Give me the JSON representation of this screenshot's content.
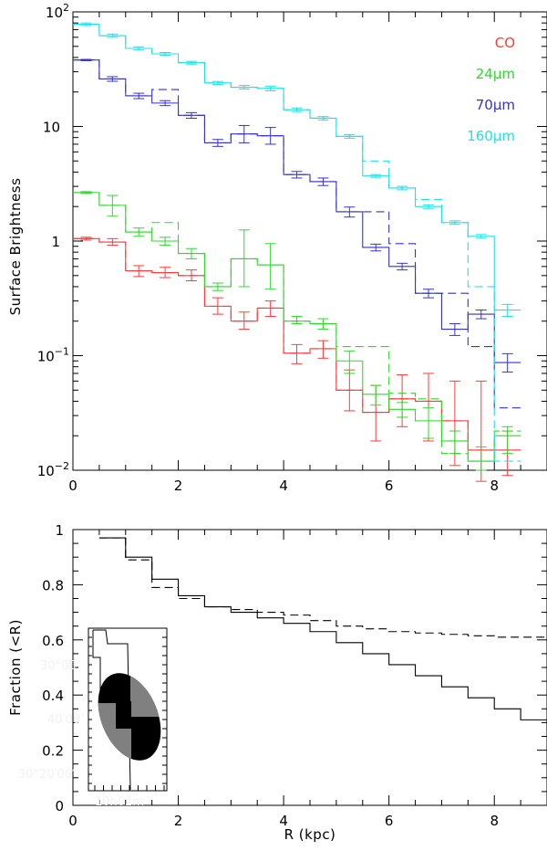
{
  "chart_data": [
    {
      "type": "line",
      "step": true,
      "xlim": [
        0,
        9
      ],
      "ylim": [
        0.01,
        100
      ],
      "yscale": "log",
      "xlabel": "",
      "ylabel": "Surface Brightness",
      "x_ticks": [
        "0",
        "2",
        "4",
        "6",
        "8"
      ],
      "y_ticks": [
        {
          "base": "10",
          "exp": "2"
        },
        {
          "base": "10",
          "exp": ""
        },
        {
          "base": "1",
          "exp": ""
        },
        {
          "base": "10",
          "exp": "−1"
        },
        {
          "base": "10",
          "exp": "−2"
        }
      ],
      "legend_position": "top-right",
      "bin_edges": [
        0,
        0.5,
        1,
        1.5,
        2,
        2.5,
        3,
        3.5,
        4,
        4.5,
        5,
        5.5,
        6,
        6.5,
        7,
        7.5,
        8,
        8.5
      ],
      "series": [
        {
          "name": "CO",
          "color": "#ff3b3b",
          "solid": [
            1.05,
            0.98,
            0.55,
            0.53,
            0.5,
            0.27,
            0.2,
            0.26,
            0.105,
            0.115,
            0.05,
            0.032,
            0.042,
            0.04,
            0.027,
            0.015,
            0.015
          ],
          "dashed": [
            1.05,
            0.98,
            0.55,
            0.53,
            0.5,
            0.27,
            0.2,
            0.26,
            0.105,
            0.115,
            0.05,
            0.032,
            0.042,
            0.04,
            0.027,
            0.015,
            0.015
          ],
          "err_low": [
            1.02,
            0.92,
            0.49,
            0.48,
            0.45,
            0.23,
            0.17,
            0.22,
            0.085,
            0.095,
            0.033,
            0.018,
            0.024,
            0.018,
            0.011,
            0.008,
            0.009
          ],
          "err_high": [
            1.08,
            1.05,
            0.61,
            0.59,
            0.56,
            0.32,
            0.24,
            0.3,
            0.125,
            0.135,
            0.075,
            0.055,
            0.068,
            0.07,
            0.06,
            0.06,
            0.022
          ]
        },
        {
          "name": "24μm",
          "color": "#2fd82f",
          "solid": [
            2.65,
            2.05,
            1.2,
            1.0,
            0.78,
            0.4,
            0.7,
            0.62,
            0.2,
            0.19,
            0.09,
            0.046,
            0.034,
            0.027,
            0.018,
            0.012,
            0.02
          ],
          "dashed": [
            2.65,
            2.05,
            1.2,
            1.45,
            0.78,
            0.4,
            0.7,
            0.62,
            0.2,
            0.19,
            0.12,
            0.12,
            0.047,
            0.042,
            0.014,
            0.012,
            0.022
          ],
          "err_low": [
            2.6,
            1.65,
            1.1,
            0.92,
            0.7,
            0.37,
            0.4,
            0.38,
            0.19,
            0.17,
            0.07,
            0.037,
            0.029,
            0.019,
            0.014,
            0.01,
            0.014
          ],
          "err_high": [
            2.7,
            2.5,
            1.3,
            1.08,
            0.86,
            0.43,
            1.25,
            0.95,
            0.22,
            0.21,
            0.11,
            0.055,
            0.039,
            0.035,
            0.022,
            0.016,
            0.024
          ]
        },
        {
          "name": "70μm",
          "color": "#3535c8",
          "solid": [
            38.0,
            26.0,
            18.5,
            16.0,
            12.5,
            7.2,
            8.6,
            8.3,
            3.8,
            3.3,
            1.8,
            0.88,
            0.6,
            0.35,
            0.17,
            0.23,
            0.087
          ],
          "dashed": [
            38.0,
            26.0,
            18.5,
            21.0,
            12.5,
            7.2,
            8.6,
            8.3,
            3.8,
            3.3,
            1.8,
            1.8,
            0.95,
            0.35,
            0.35,
            0.12,
            0.035
          ],
          "err_low": [
            37.5,
            24.8,
            17.5,
            15.2,
            11.8,
            6.7,
            7.2,
            7.0,
            3.55,
            3.05,
            1.62,
            0.82,
            0.56,
            0.32,
            0.15,
            0.21,
            0.072
          ],
          "err_high": [
            38.5,
            27.2,
            19.5,
            16.8,
            13.2,
            7.7,
            10.2,
            9.8,
            4.05,
            3.55,
            1.98,
            0.94,
            0.64,
            0.38,
            0.19,
            0.25,
            0.104
          ]
        },
        {
          "name": "160μm",
          "color": "#22e0e6",
          "solid": [
            78.0,
            62.0,
            48.0,
            43.0,
            36.0,
            24.0,
            22.0,
            21.5,
            14.0,
            11.8,
            8.2,
            3.7,
            2.9,
            2.0,
            1.45,
            1.1,
            0.25
          ],
          "dashed": [
            78.0,
            62.0,
            48.0,
            43.0,
            36.0,
            24.0,
            22.0,
            21.5,
            14.0,
            11.8,
            8.2,
            5.0,
            2.9,
            2.3,
            1.45,
            0.4,
            0.012
          ],
          "err_low": [
            76.0,
            60.0,
            46.5,
            41.8,
            35.0,
            23.3,
            21.2,
            20.5,
            13.5,
            11.4,
            7.9,
            3.6,
            2.8,
            1.93,
            1.4,
            1.06,
            0.22
          ],
          "err_high": [
            80.0,
            64.0,
            49.5,
            44.2,
            37.0,
            24.7,
            22.8,
            22.5,
            14.5,
            12.2,
            8.5,
            3.8,
            3.0,
            2.07,
            1.5,
            1.14,
            0.28
          ]
        }
      ]
    },
    {
      "type": "line",
      "step": true,
      "xlim": [
        0,
        9
      ],
      "ylim": [
        0,
        1
      ],
      "xlabel": "R (kpc)",
      "ylabel": "Fraction (<R)",
      "x_ticks": [
        "0",
        "2",
        "4",
        "6",
        "8"
      ],
      "y_ticks": [
        "0",
        "0.2",
        "0.4",
        "0.6",
        "0.8",
        "1"
      ],
      "bin_edges": [
        0.5,
        1,
        1.5,
        2,
        2.5,
        3,
        3.5,
        4,
        4.5,
        5,
        5.5,
        6,
        6.5,
        7,
        7.5,
        8,
        8.5,
        9
      ],
      "series": [
        {
          "style": "solid",
          "values": [
            0.97,
            0.9,
            0.82,
            0.76,
            0.72,
            0.7,
            0.68,
            0.66,
            0.63,
            0.59,
            0.55,
            0.51,
            0.47,
            0.43,
            0.39,
            0.35,
            0.31,
            0.27
          ]
        },
        {
          "style": "dashed",
          "values": [
            0.97,
            0.89,
            0.79,
            0.75,
            0.72,
            0.71,
            0.7,
            0.69,
            0.67,
            0.65,
            0.64,
            0.63,
            0.625,
            0.62,
            0.615,
            0.61,
            0.61,
            0.61
          ]
        }
      ],
      "inset": {
        "labels": [
          "30°00′",
          "40′00″",
          "30°20′00″",
          "10h02m"
        ],
        "colors": {
          "dark": "#000000",
          "mid": "#808080"
        }
      }
    }
  ]
}
